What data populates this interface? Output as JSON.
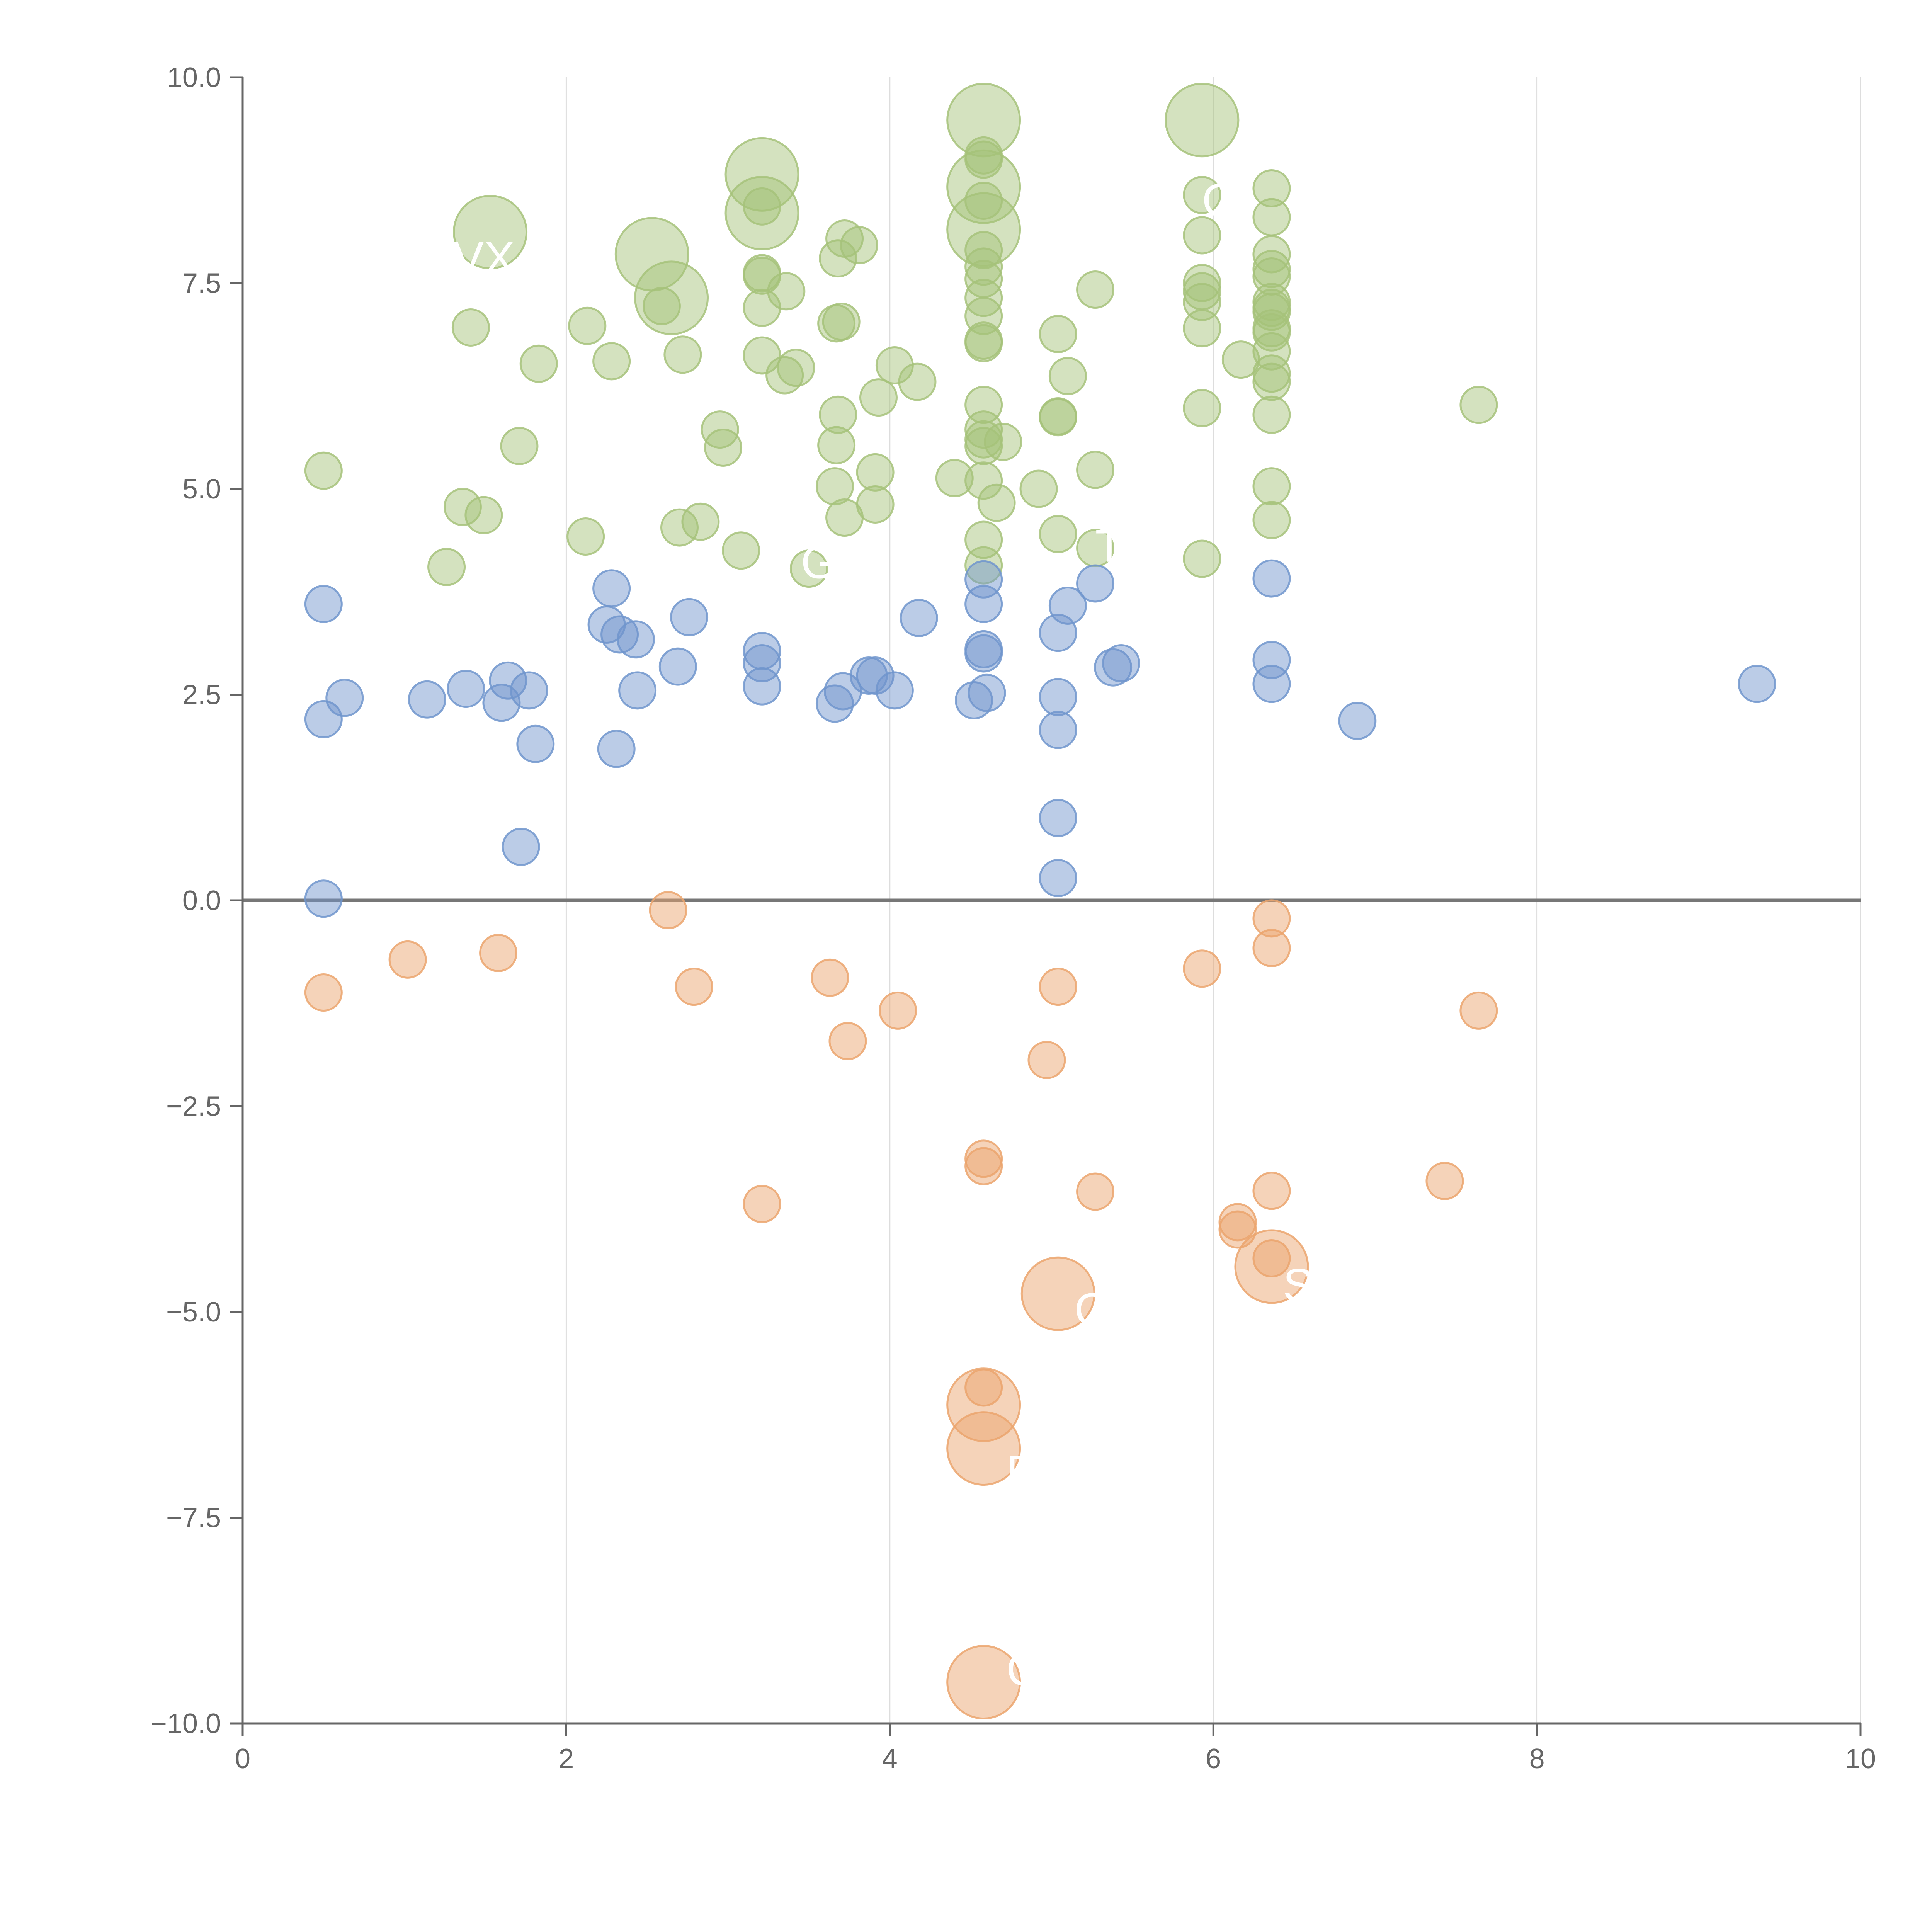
{
  "chart_data": {
    "type": "scatter",
    "title": "",
    "xlabel": "",
    "ylabel": "",
    "xlim": [
      0,
      10
    ],
    "ylim": [
      -10,
      10
    ],
    "x_ticks": [
      "0",
      "2",
      "4",
      "6",
      "8",
      "10"
    ],
    "y_ticks": [
      "10.0",
      "7.5",
      "5.0",
      "2.5",
      "0.0",
      "−2.5",
      "−5.0",
      "−7.5",
      "−10.0"
    ],
    "x_grid": true,
    "y_grid": false,
    "legend": "none",
    "zero_line": 0,
    "colors": {
      "high": "#a6c27a",
      "mid": "#7095cc",
      "neg": "#eba46d",
      "axis": "#666666",
      "grid": "#dddddd",
      "zero": "#777777"
    },
    "series": [
      {
        "color_key": "high",
        "points": [
          [
            1.53,
            8.12,
            2
          ],
          [
            2.53,
            7.85,
            2
          ],
          [
            2.65,
            7.32,
            2
          ],
          [
            3.21,
            8.82,
            2
          ],
          [
            3.21,
            8.35,
            2
          ],
          [
            4.58,
            9.48,
            2
          ],
          [
            4.58,
            8.67,
            2
          ],
          [
            4.58,
            8.15,
            2
          ],
          [
            5.93,
            9.48,
            2
          ],
          [
            0.5,
            5.22,
            1
          ],
          [
            1.26,
            4.05,
            1
          ],
          [
            1.36,
            4.78,
            1
          ],
          [
            1.41,
            6.96,
            1
          ],
          [
            1.49,
            4.68,
            1
          ],
          [
            1.71,
            5.52,
            1
          ],
          [
            1.83,
            6.52,
            1
          ],
          [
            2.12,
            4.42,
            1
          ],
          [
            2.13,
            6.98,
            1
          ],
          [
            2.28,
            6.55,
            1
          ],
          [
            2.59,
            7.22,
            1
          ],
          [
            2.7,
            4.53,
            1
          ],
          [
            2.72,
            6.63,
            1
          ],
          [
            2.83,
            4.6,
            1
          ],
          [
            2.95,
            5.72,
            1
          ],
          [
            2.97,
            5.5,
            1
          ],
          [
            3.08,
            4.25,
            1
          ],
          [
            3.21,
            7.62,
            1
          ],
          [
            3.21,
            7.59,
            1
          ],
          [
            3.21,
            7.2,
            1
          ],
          [
            3.21,
            6.62,
            1
          ],
          [
            3.21,
            8.43,
            1
          ],
          [
            3.35,
            6.38,
            1
          ],
          [
            3.36,
            7.4,
            1
          ],
          [
            3.42,
            6.47,
            1
          ],
          [
            3.5,
            4.03,
            1
          ],
          [
            3.67,
            7.01,
            1
          ],
          [
            3.67,
            5.53,
            1
          ],
          [
            3.66,
            5.03,
            1
          ],
          [
            3.68,
            7.8,
            1
          ],
          [
            3.68,
            5.9,
            1
          ],
          [
            3.7,
            7.03,
            1
          ],
          [
            3.72,
            8.04,
            1
          ],
          [
            3.72,
            4.65,
            1
          ],
          [
            3.81,
            7.96,
            1
          ],
          [
            3.91,
            5.2,
            1
          ],
          [
            3.91,
            4.81,
            1
          ],
          [
            3.93,
            6.11,
            1
          ],
          [
            4.03,
            6.5,
            1
          ],
          [
            4.17,
            6.3,
            1
          ],
          [
            4.4,
            5.13,
            1
          ],
          [
            4.58,
            9.05,
            1
          ],
          [
            4.58,
            9.0,
            1
          ],
          [
            4.58,
            8.5,
            1
          ],
          [
            4.58,
            7.9,
            1
          ],
          [
            4.58,
            7.7,
            1
          ],
          [
            4.58,
            7.55,
            1
          ],
          [
            4.58,
            7.32,
            1
          ],
          [
            4.58,
            7.1,
            1
          ],
          [
            4.58,
            6.8,
            1
          ],
          [
            4.58,
            6.77,
            1
          ],
          [
            4.58,
            6.02,
            1
          ],
          [
            4.58,
            5.72,
            1
          ],
          [
            4.58,
            5.6,
            1
          ],
          [
            4.58,
            5.52,
            1
          ],
          [
            4.58,
            5.1,
            1
          ],
          [
            4.58,
            4.38,
            1
          ],
          [
            4.58,
            4.07,
            1
          ],
          [
            4.7,
            5.57,
            1
          ],
          [
            4.66,
            4.83,
            1
          ],
          [
            4.92,
            5.0,
            1
          ],
          [
            5.04,
            6.88,
            1
          ],
          [
            5.04,
            5.88,
            1
          ],
          [
            5.04,
            5.87,
            1
          ],
          [
            5.04,
            4.45,
            1
          ],
          [
            5.1,
            6.37,
            1
          ],
          [
            5.27,
            7.42,
            1
          ],
          [
            5.27,
            5.23,
            1
          ],
          [
            5.27,
            4.28,
            1
          ],
          [
            5.93,
            8.57,
            1
          ],
          [
            5.93,
            8.08,
            1
          ],
          [
            5.93,
            7.5,
            1
          ],
          [
            5.93,
            7.4,
            1
          ],
          [
            5.93,
            7.27,
            1
          ],
          [
            5.93,
            6.95,
            1
          ],
          [
            5.93,
            5.98,
            1
          ],
          [
            5.93,
            4.15,
            1
          ],
          [
            6.17,
            6.57,
            1
          ],
          [
            6.36,
            8.65,
            1
          ],
          [
            6.36,
            8.3,
            1
          ],
          [
            6.36,
            7.85,
            1
          ],
          [
            6.36,
            7.67,
            1
          ],
          [
            6.36,
            7.58,
            1
          ],
          [
            6.36,
            7.27,
            1
          ],
          [
            6.36,
            7.2,
            1
          ],
          [
            6.36,
            7.15,
            1
          ],
          [
            6.36,
            6.95,
            1
          ],
          [
            6.36,
            6.9,
            1
          ],
          [
            6.36,
            6.67,
            1
          ],
          [
            6.36,
            6.4,
            1
          ],
          [
            6.36,
            6.3,
            1
          ],
          [
            6.36,
            5.9,
            1
          ],
          [
            6.36,
            5.03,
            1
          ],
          [
            6.36,
            4.62,
            1
          ],
          [
            7.64,
            6.02,
            1
          ]
        ]
      },
      {
        "color_key": "mid",
        "points": [
          [
            0.5,
            3.6,
            1
          ],
          [
            0.5,
            2.2,
            1
          ],
          [
            0.5,
            0.02,
            1
          ],
          [
            0.63,
            2.46,
            1
          ],
          [
            1.14,
            2.44,
            1
          ],
          [
            1.38,
            2.57,
            1
          ],
          [
            1.6,
            2.4,
            1
          ],
          [
            1.64,
            2.67,
            1
          ],
          [
            1.72,
            0.65,
            1
          ],
          [
            1.77,
            2.55,
            1
          ],
          [
            1.81,
            1.9,
            1
          ],
          [
            2.25,
            3.35,
            1
          ],
          [
            2.28,
            3.79,
            1
          ],
          [
            2.31,
            1.84,
            1
          ],
          [
            2.33,
            3.23,
            1
          ],
          [
            2.43,
            3.17,
            1
          ],
          [
            2.44,
            2.55,
            1
          ],
          [
            2.69,
            2.84,
            1
          ],
          [
            2.76,
            3.44,
            1
          ],
          [
            3.21,
            3.03,
            1
          ],
          [
            3.21,
            2.88,
            1
          ],
          [
            3.21,
            2.6,
            1
          ],
          [
            3.66,
            2.39,
            1
          ],
          [
            3.71,
            2.54,
            1
          ],
          [
            3.87,
            2.73,
            1
          ],
          [
            3.91,
            2.73,
            1
          ],
          [
            4.03,
            2.55,
            1
          ],
          [
            4.18,
            3.43,
            1
          ],
          [
            4.52,
            2.43,
            1
          ],
          [
            4.58,
            3.9,
            1
          ],
          [
            4.58,
            3.6,
            1
          ],
          [
            4.58,
            3.05,
            1
          ],
          [
            4.58,
            3.0,
            1
          ],
          [
            4.6,
            2.52,
            1
          ],
          [
            5.04,
            3.25,
            1
          ],
          [
            5.04,
            2.47,
            1
          ],
          [
            5.04,
            2.07,
            1
          ],
          [
            5.04,
            1.0,
            1
          ],
          [
            5.04,
            0.27,
            1
          ],
          [
            5.1,
            3.58,
            1
          ],
          [
            5.27,
            3.85,
            1
          ],
          [
            5.38,
            2.83,
            1
          ],
          [
            5.43,
            2.88,
            1
          ],
          [
            6.36,
            3.91,
            1
          ],
          [
            6.36,
            2.92,
            1
          ],
          [
            6.36,
            2.63,
            1
          ],
          [
            6.89,
            2.18,
            1
          ],
          [
            9.36,
            2.63,
            1
          ]
        ]
      },
      {
        "color_key": "neg",
        "points": [
          [
            0.5,
            -1.12,
            1
          ],
          [
            1.02,
            -0.72,
            1
          ],
          [
            1.58,
            -0.64,
            1
          ],
          [
            2.63,
            -0.12,
            1
          ],
          [
            2.79,
            -1.05,
            1
          ],
          [
            3.21,
            -3.69,
            1
          ],
          [
            3.63,
            -0.94,
            1
          ],
          [
            3.74,
            -1.71,
            1
          ],
          [
            4.05,
            -1.34,
            1
          ],
          [
            4.58,
            -3.14,
            1
          ],
          [
            4.58,
            -3.23,
            1
          ],
          [
            4.58,
            -5.92,
            1
          ],
          [
            4.97,
            -1.94,
            1
          ],
          [
            5.04,
            -1.05,
            1
          ],
          [
            5.27,
            -3.54,
            1
          ],
          [
            5.93,
            -0.83,
            1
          ],
          [
            6.15,
            -3.91,
            1
          ],
          [
            6.15,
            -4.0,
            1
          ],
          [
            6.36,
            -0.22,
            1
          ],
          [
            6.36,
            -0.58,
            1
          ],
          [
            6.36,
            -3.53,
            1
          ],
          [
            6.36,
            -4.35,
            1
          ],
          [
            7.43,
            -3.41,
            1
          ],
          [
            7.64,
            -1.34,
            1
          ],
          [
            4.58,
            -6.13,
            2
          ],
          [
            4.58,
            -6.66,
            2
          ],
          [
            4.58,
            -9.5,
            2
          ],
          [
            5.04,
            -4.78,
            2
          ],
          [
            6.36,
            -4.45,
            2
          ]
        ]
      }
    ],
    "annotations": [
      {
        "text": "VX",
        "x": 1.3,
        "y": 7.8
      },
      {
        "text": "'",
        "x": 3.5,
        "y": 5.6
      },
      {
        "text": "GL",
        "x": 3.45,
        "y": 4.1
      },
      {
        "text": "T",
        "x": 5.27,
        "y": 4.3
      },
      {
        "text": "Q",
        "x": 5.93,
        "y": 8.5
      },
      {
        "text": "S",
        "x": 6.43,
        "y": -4.68
      },
      {
        "text": "C",
        "x": 5.14,
        "y": -4.98
      },
      {
        "text": "P",
        "x": 4.72,
        "y": -6.95
      },
      {
        "text": "C",
        "x": 4.72,
        "y": -9.35
      }
    ]
  }
}
